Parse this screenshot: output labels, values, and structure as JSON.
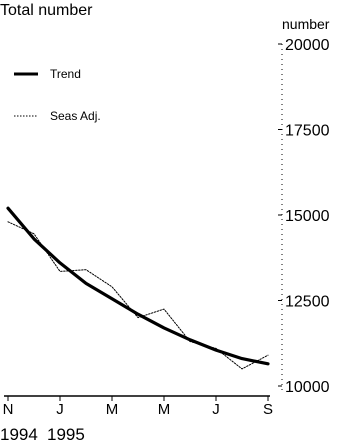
{
  "chart_data": {
    "type": "line",
    "title": "Total number",
    "ylabel": "number",
    "ylim": [
      10000,
      20000
    ],
    "y_ticks": [
      10000,
      12500,
      15000,
      17500,
      20000
    ],
    "y_tick_labels": [
      "10000",
      "12500",
      "15000",
      "17500",
      "20000"
    ],
    "x_tick_labels": [
      "N",
      "J",
      "M",
      "M",
      "J",
      "S"
    ],
    "year_labels": [
      "1994",
      "1995"
    ],
    "x": [
      "1994-11",
      "1994-12",
      "1995-01",
      "1995-02",
      "1995-03",
      "1995-04",
      "1995-05",
      "1995-06",
      "1995-07",
      "1995-08",
      "1995-09"
    ],
    "legend": {
      "position": "top-left"
    },
    "grid": false,
    "series": [
      {
        "name": "Trend",
        "style": "solid-thick",
        "color": "#000000",
        "values": [
          15200,
          14300,
          13600,
          13000,
          12550,
          12100,
          11700,
          11350,
          11050,
          10800,
          10650
        ]
      },
      {
        "name": "Seas Adj.",
        "style": "dotted-thin",
        "color": "#000000",
        "values": [
          14800,
          14450,
          13350,
          13400,
          12900,
          12000,
          12250,
          11300,
          11100,
          10500,
          10900
        ]
      }
    ]
  }
}
